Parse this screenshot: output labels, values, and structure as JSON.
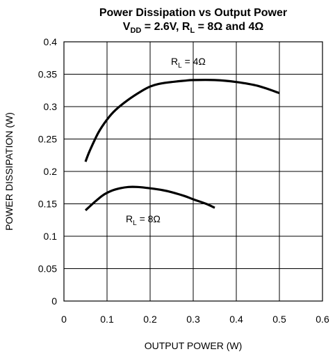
{
  "chart_data": {
    "type": "line",
    "title": "Power Dissipation vs Output Power",
    "subtitle": {
      "v_main": "V",
      "v_sub": "DD",
      "mid": " = 2.6V, R",
      "r_sub": "L",
      "end": " = 8Ω and 4Ω"
    },
    "xlabel": "OUTPUT POWER (W)",
    "ylabel": "POWER DISSIPATION (W)",
    "xlim": [
      0,
      0.6
    ],
    "ylim": [
      0,
      0.4
    ],
    "x_ticks": [
      "0",
      "0.1",
      "0.2",
      "0.3",
      "0.4",
      "0.5",
      "0.6"
    ],
    "y_ticks": [
      "0",
      "0.05",
      "0.1",
      "0.15",
      "0.2",
      "0.25",
      "0.3",
      "0.35",
      "0.4"
    ],
    "grid": true,
    "series": [
      {
        "label_main": "R",
        "label_sub": "L",
        "label_rest": " = 4Ω",
        "x": [
          0.05,
          0.06,
          0.08,
          0.1,
          0.12,
          0.15,
          0.18,
          0.2,
          0.22,
          0.25,
          0.28,
          0.3,
          0.35,
          0.4,
          0.45,
          0.5
        ],
        "y": [
          0.215,
          0.232,
          0.26,
          0.28,
          0.295,
          0.311,
          0.324,
          0.331,
          0.335,
          0.338,
          0.34,
          0.341,
          0.341,
          0.338,
          0.332,
          0.321
        ]
      },
      {
        "label_main": "R",
        "label_sub": "L",
        "label_rest": " = 8Ω",
        "x": [
          0.05,
          0.07,
          0.09,
          0.11,
          0.13,
          0.15,
          0.17,
          0.2,
          0.23,
          0.25,
          0.28,
          0.3,
          0.33,
          0.35
        ],
        "y": [
          0.14,
          0.152,
          0.163,
          0.17,
          0.174,
          0.176,
          0.176,
          0.174,
          0.171,
          0.168,
          0.162,
          0.157,
          0.15,
          0.144
        ]
      }
    ]
  }
}
